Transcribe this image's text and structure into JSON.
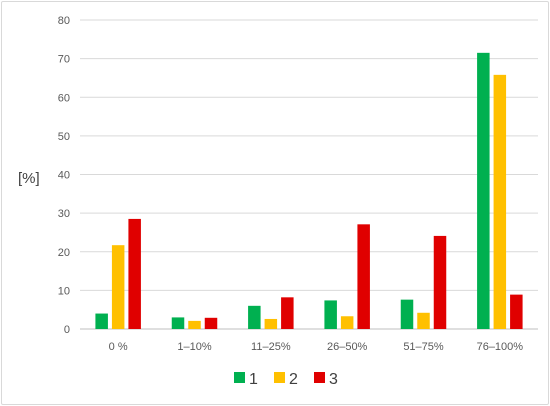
{
  "chart_data": {
    "type": "bar",
    "title": "",
    "xlabel": "",
    "ylabel": "[%]",
    "ylim": [
      0,
      80
    ],
    "yticks": [
      0,
      10,
      20,
      30,
      40,
      50,
      60,
      70,
      80
    ],
    "grid": true,
    "legend_position": "bottom",
    "categories": [
      "0 %",
      "1–10%",
      "11–25%",
      "26–50%",
      "51–75%",
      "76–100%"
    ],
    "series": [
      {
        "name": "1",
        "color": "#00b050",
        "values": [
          4.0,
          3.0,
          6.0,
          7.4,
          7.6,
          71.5
        ]
      },
      {
        "name": "2",
        "color": "#ffc000",
        "values": [
          21.7,
          2.1,
          2.6,
          3.3,
          4.2,
          65.8
        ]
      },
      {
        "name": "3",
        "color": "#e00000",
        "values": [
          28.5,
          2.9,
          8.2,
          27.1,
          24.1,
          8.9
        ]
      }
    ]
  }
}
